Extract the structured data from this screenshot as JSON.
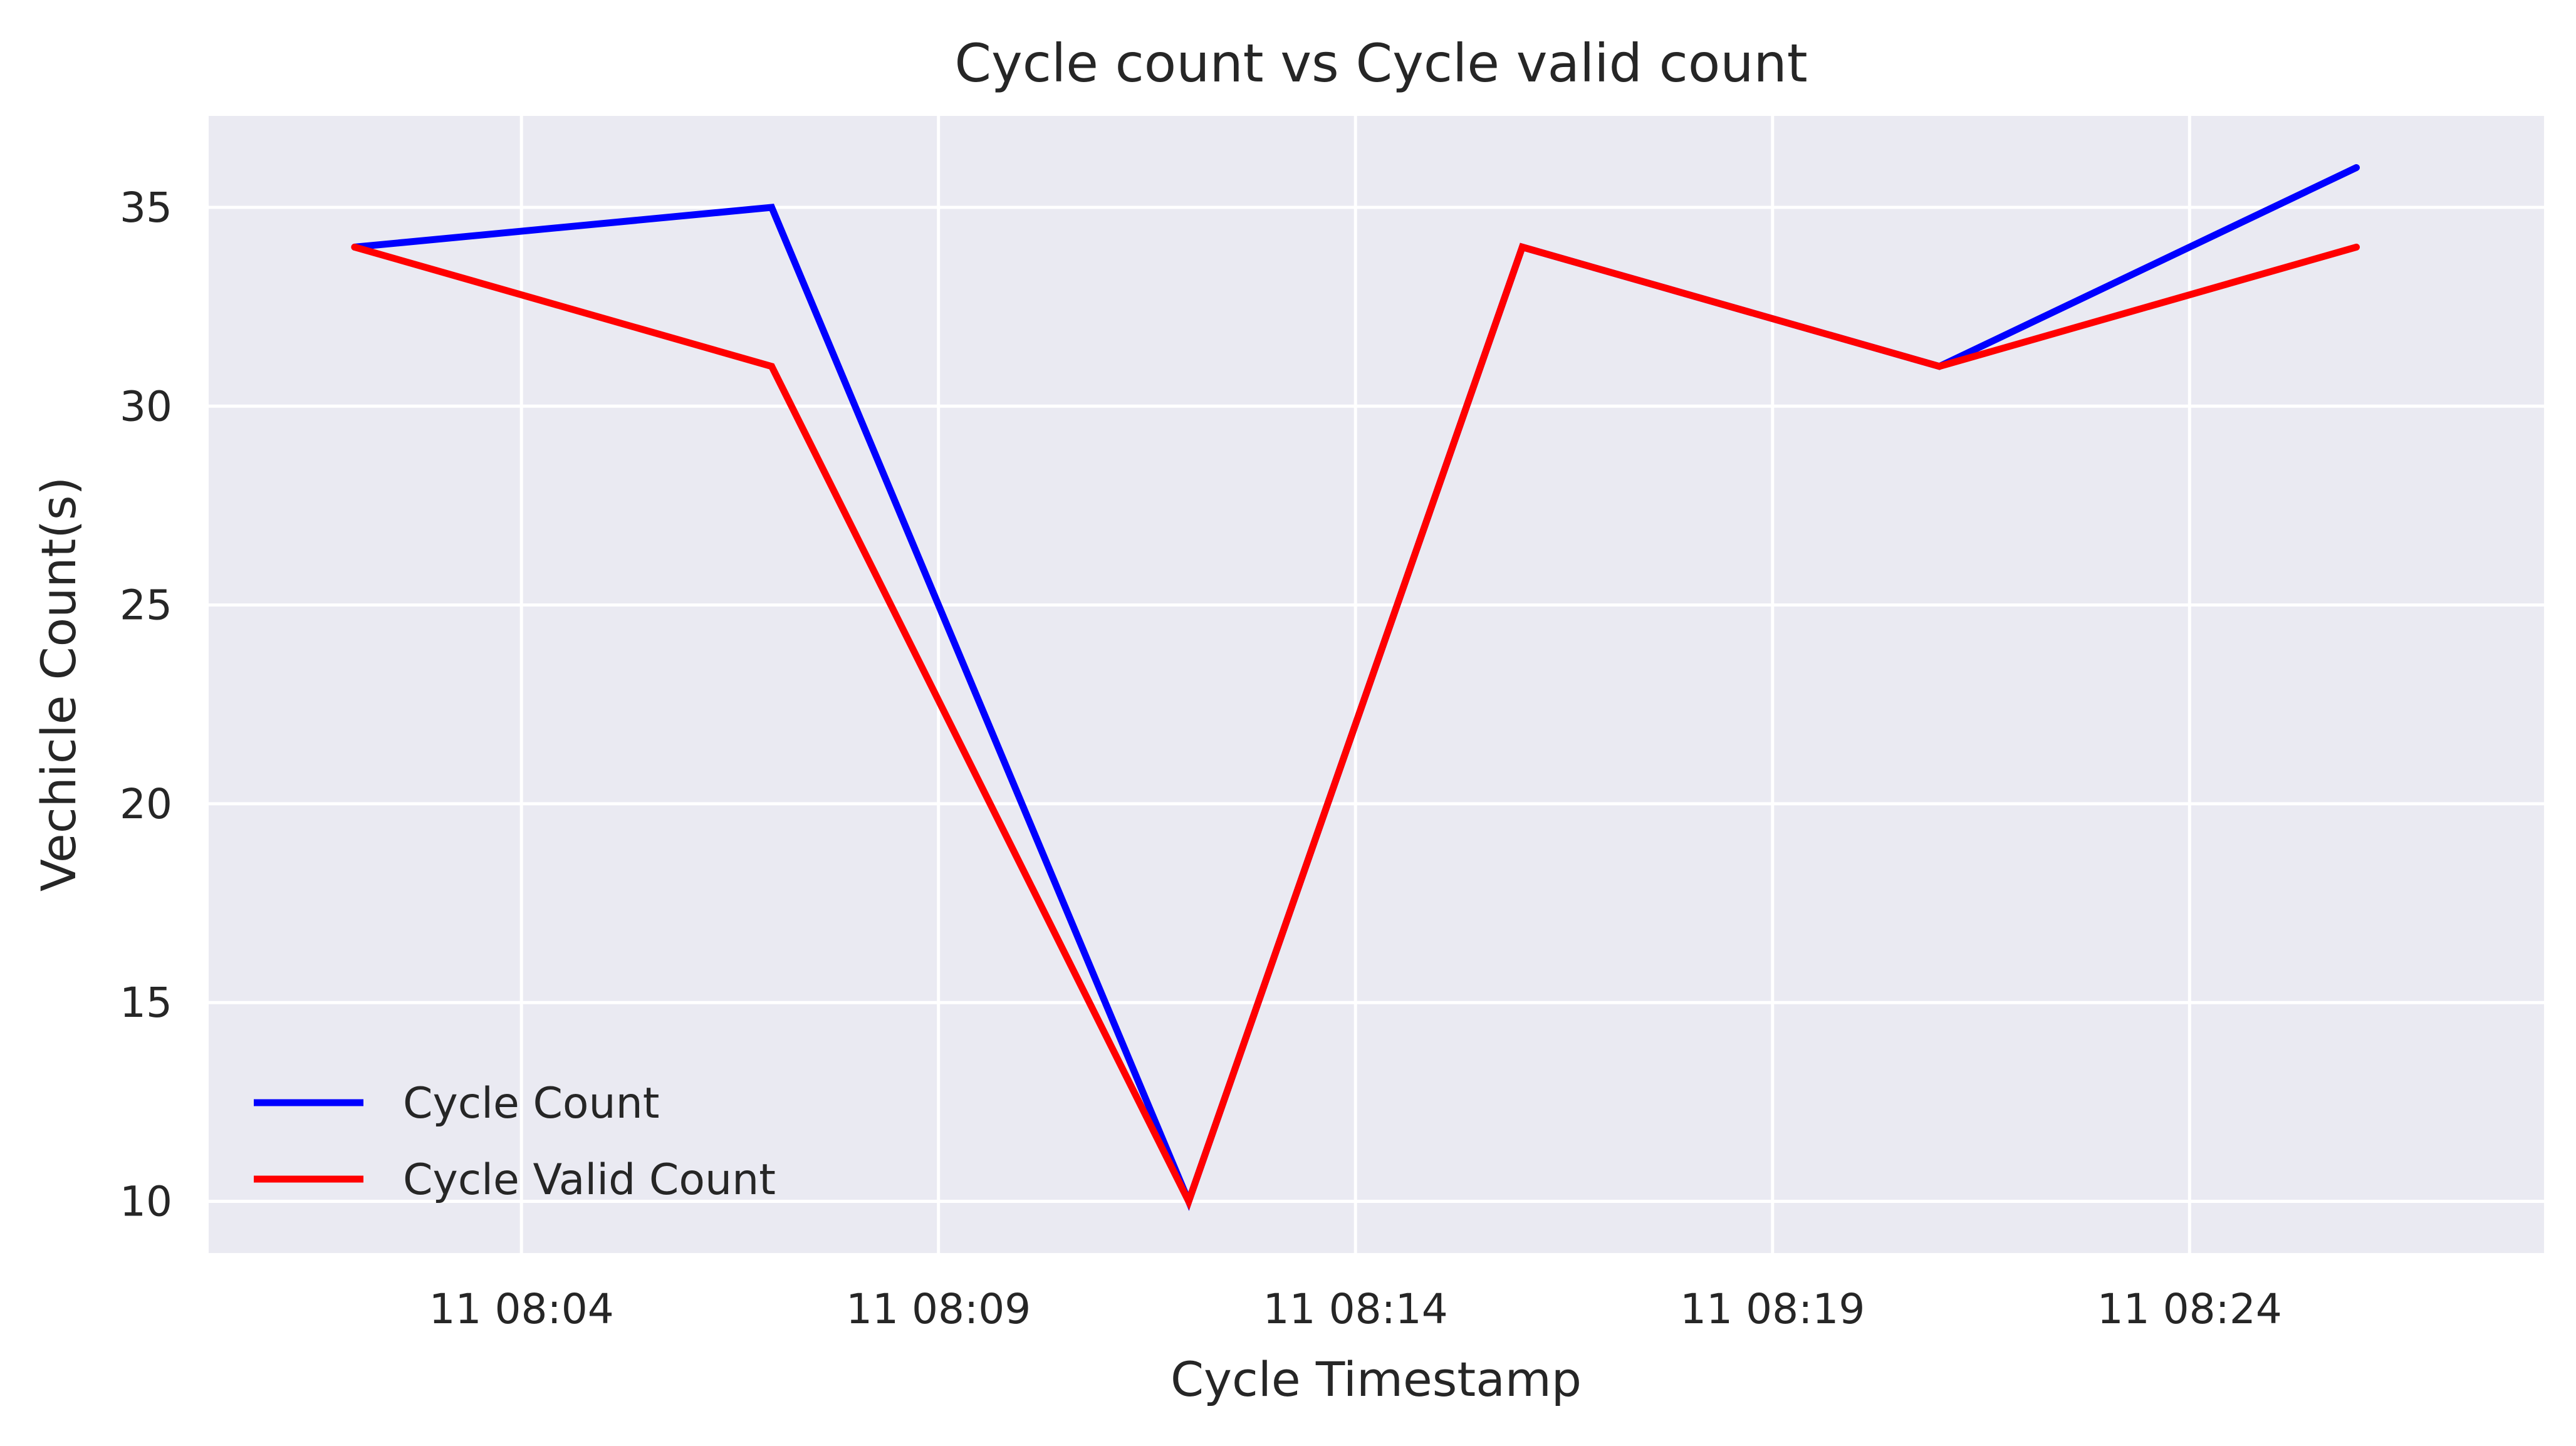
{
  "chart_data": {
    "type": "line",
    "title": "Cycle count vs Cycle valid count",
    "xlabel": "Cycle Timestamp",
    "ylabel": "Vechicle Count(s)",
    "x": [
      "11 08:02",
      "11 08:07",
      "11 08:12",
      "11 08:16",
      "11 08:21",
      "11 08:26"
    ],
    "xlim": [
      "11 08:00:15",
      "11 08:28:15"
    ],
    "ylim": [
      8.7,
      37.3
    ],
    "x_ticks": [
      "11 08:04",
      "11 08:09",
      "11 08:14",
      "11 08:19",
      "11 08:24"
    ],
    "y_ticks": [
      "10",
      "15",
      "20",
      "25",
      "30",
      "35"
    ],
    "grid": true,
    "background": "#EAEAF2",
    "legend_position": "lower-left",
    "series": [
      {
        "name": "Cycle Count",
        "color": "#0000FF",
        "values": [
          34,
          35,
          10,
          34,
          31,
          36
        ]
      },
      {
        "name": "Cycle Valid Count",
        "color": "#FF0000",
        "values": [
          34,
          31,
          10,
          34,
          31,
          34
        ]
      }
    ]
  }
}
